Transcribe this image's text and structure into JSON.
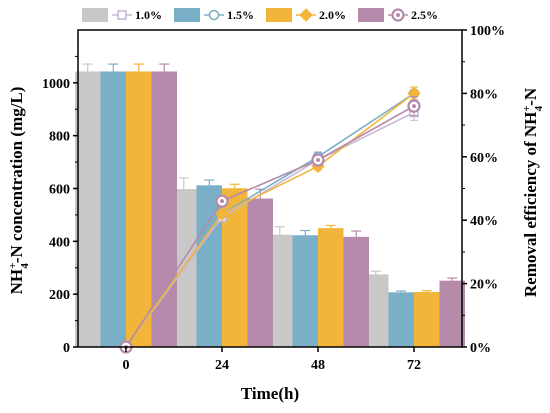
{
  "chart_data": {
    "type": "bar",
    "categories": [
      "0",
      "24",
      "48",
      "72"
    ],
    "xlabel": "Time(h)",
    "ylabel": {
      "main": "NH",
      "sup": "+",
      "sub": "4",
      "rest": "-N concentration (mg/L)"
    },
    "y2label": {
      "main": "Removal efficiency of NH",
      "sup": "+",
      "sub": "4",
      "rest": "-N"
    },
    "ylim": [
      0,
      1200
    ],
    "yticks": [
      0,
      200,
      400,
      600,
      800,
      1000
    ],
    "y2lim": [
      0,
      1.0
    ],
    "y2ticks": [
      0,
      0.2,
      0.4,
      0.6,
      0.8,
      1.0
    ],
    "y2ticklabels": [
      "0%",
      "20%",
      "40%",
      "60%",
      "80%",
      "100%"
    ],
    "legend_position": "top",
    "series": [
      {
        "name": "1.0%",
        "bar_color": "#c8c8c8",
        "line_color": "#c6b8d6",
        "marker": "square",
        "values": [
          1043,
          598,
          425,
          275
        ],
        "errors": [
          28,
          42,
          30,
          12
        ],
        "removal": [
          0,
          0.41,
          0.59,
          0.74
        ],
        "removal_errors": [
          0,
          0.015,
          0.02,
          0.025
        ]
      },
      {
        "name": "1.5%",
        "bar_color": "#7aafc8",
        "line_color": "#7aafc8",
        "marker": "circle",
        "values": [
          1043,
          612,
          423,
          207
        ],
        "errors": [
          28,
          20,
          18,
          5
        ],
        "removal": [
          0,
          0.42,
          0.6,
          0.8
        ],
        "removal_errors": [
          0,
          0.012,
          0.015,
          0.02
        ]
      },
      {
        "name": "2.0%",
        "bar_color": "#f2b53a",
        "line_color": "#f2b53a",
        "marker": "diamond",
        "values": [
          1043,
          601,
          450,
          208
        ],
        "errors": [
          28,
          15,
          10,
          5
        ],
        "removal": [
          0,
          0.42,
          0.57,
          0.8
        ],
        "removal_errors": [
          0,
          0.012,
          0.012,
          0.02
        ]
      },
      {
        "name": "2.5%",
        "bar_color": "#b58aab",
        "line_color": "#b58aab",
        "marker": "circle-dot",
        "values": [
          1043,
          562,
          417,
          251
        ],
        "errors": [
          28,
          35,
          22,
          10
        ],
        "removal": [
          0,
          0.46,
          0.59,
          0.76
        ],
        "removal_errors": [
          0,
          0.015,
          0.018,
          0.03
        ]
      }
    ]
  }
}
